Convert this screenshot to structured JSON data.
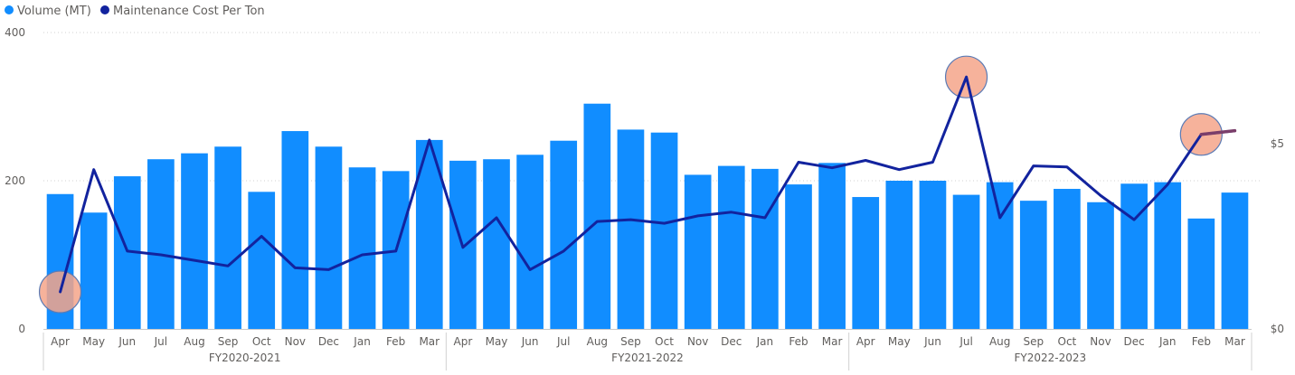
{
  "chart_data": {
    "type": "bar",
    "title": "",
    "legend_position": "top-left",
    "grid": true,
    "categories": [
      "Apr",
      "May",
      "Jun",
      "Jul",
      "Aug",
      "Sep",
      "Oct",
      "Nov",
      "Dec",
      "Jan",
      "Feb",
      "Mar",
      "Apr",
      "May",
      "Jun",
      "Jul",
      "Aug",
      "Sep",
      "Oct",
      "Nov",
      "Dec",
      "Jan",
      "Feb",
      "Mar",
      "Apr",
      "May",
      "Jun",
      "Jul",
      "Aug",
      "Sep",
      "Oct",
      "Nov",
      "Dec",
      "Jan",
      "Feb",
      "Mar"
    ],
    "groups": [
      {
        "label": "FY2020-2021",
        "count": 12
      },
      {
        "label": "FY2021-2022",
        "count": 12
      },
      {
        "label": "FY2022-2023",
        "count": 12
      }
    ],
    "series": [
      {
        "name": "Volume (MT)",
        "type": "bar",
        "axis": "left",
        "color": "#118DFF",
        "legend_marker_color": "#118DFF",
        "values": [
          182,
          157,
          206,
          229,
          237,
          246,
          185,
          267,
          246,
          218,
          213,
          255,
          227,
          229,
          235,
          254,
          304,
          269,
          265,
          208,
          220,
          216,
          195,
          224,
          178,
          200,
          200,
          181,
          198,
          173,
          189,
          171,
          196,
          198,
          149,
          184
        ]
      },
      {
        "name": "Maintenance Cost Per Ton",
        "type": "line",
        "axis": "right",
        "color": "#12239E",
        "values": [
          1.0,
          4.3,
          2.1,
          2.0,
          1.85,
          1.7,
          2.5,
          1.65,
          1.6,
          2.0,
          2.1,
          5.1,
          2.2,
          3.0,
          1.6,
          2.1,
          2.9,
          2.95,
          2.85,
          3.05,
          3.15,
          3.0,
          4.5,
          4.35,
          4.55,
          4.3,
          4.5,
          6.8,
          3.0,
          4.4,
          4.37,
          3.6,
          2.95,
          3.9,
          5.25,
          5.35
        ]
      }
    ],
    "y_left": {
      "ylim": [
        0,
        400
      ],
      "ticks": [
        0,
        200,
        400
      ],
      "tick_labels": [
        "0",
        "200",
        "400"
      ]
    },
    "y_right": {
      "ylim": [
        0,
        8
      ],
      "ticks": [
        0,
        5
      ],
      "tick_labels": [
        "$0",
        "$5"
      ]
    },
    "highlights": [
      {
        "category_index": 0,
        "series": "Maintenance Cost Per Ton",
        "color": "#F4A58A"
      },
      {
        "category_index": 27,
        "series": "Maintenance Cost Per Ton",
        "color": "#F4A58A"
      },
      {
        "category_index": 34,
        "series": "Maintenance Cost Per Ton",
        "color": "#F4A58A"
      }
    ],
    "highlight_segment": {
      "from_index": 34,
      "to_index": 35,
      "color": "#7A3E6A"
    }
  }
}
